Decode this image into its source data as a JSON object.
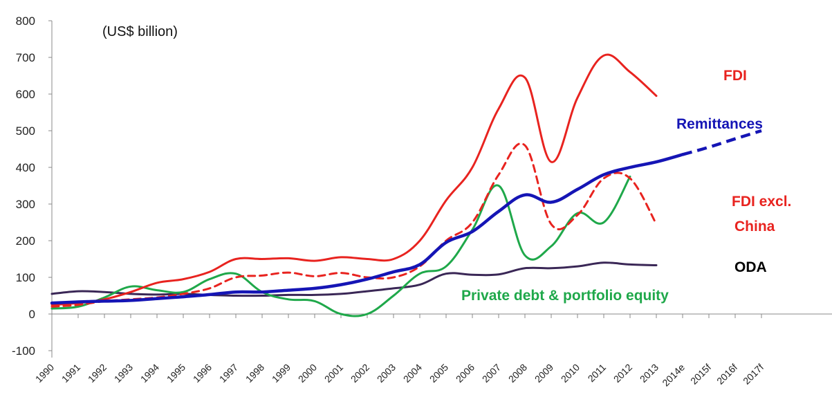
{
  "chart_data": {
    "type": "line",
    "title": "",
    "unit_label": "(US$ billion)",
    "xlabel": "",
    "ylabel": "",
    "ylim": [
      -100,
      800
    ],
    "yticks": [
      "-100",
      "0",
      "100",
      "200",
      "300",
      "400",
      "500",
      "600",
      "700",
      "800"
    ],
    "categories": [
      "1990",
      "1991",
      "1992",
      "1993",
      "1994",
      "1995",
      "1996",
      "1997",
      "1998",
      "1999",
      "2000",
      "2001",
      "2002",
      "2003",
      "2004",
      "2005",
      "2006",
      "2007",
      "2008",
      "2009",
      "2010",
      "2011",
      "2012",
      "2013",
      "2014e",
      "2015f",
      "2016f",
      "2017f"
    ],
    "grid": false,
    "legend": "inline labels",
    "series": [
      {
        "name": "FDI",
        "color": "#e8231f",
        "style": "solid",
        "values": [
          25,
          30,
          40,
          60,
          85,
          95,
          115,
          150,
          150,
          152,
          145,
          155,
          150,
          150,
          200,
          310,
          400,
          560,
          645,
          415,
          590,
          705,
          660,
          595,
          null,
          null,
          null,
          null
        ]
      },
      {
        "name": "FDI excl. China",
        "color": "#e8231f",
        "style": "dashed",
        "values": [
          20,
          25,
          35,
          40,
          45,
          55,
          70,
          100,
          105,
          113,
          103,
          112,
          100,
          100,
          130,
          200,
          250,
          380,
          460,
          245,
          270,
          370,
          370,
          245,
          null,
          null,
          null,
          null
        ]
      },
      {
        "name": "Remittances",
        "color": "#1515b5",
        "style": "solid",
        "values": [
          30,
          33,
          35,
          37,
          42,
          47,
          53,
          60,
          60,
          65,
          70,
          80,
          95,
          115,
          135,
          195,
          225,
          280,
          325,
          305,
          340,
          380,
          400,
          415,
          435,
          null,
          null,
          null
        ],
        "projection": [
          null,
          null,
          null,
          null,
          null,
          null,
          null,
          null,
          null,
          null,
          null,
          null,
          null,
          null,
          null,
          null,
          null,
          null,
          null,
          null,
          null,
          null,
          null,
          null,
          435,
          455,
          478,
          500
        ]
      },
      {
        "name": "Private debt & portfolio equity",
        "color": "#1fa84a",
        "style": "solid",
        "values": [
          15,
          20,
          45,
          75,
          65,
          60,
          95,
          110,
          60,
          40,
          35,
          0,
          0,
          50,
          110,
          130,
          230,
          350,
          160,
          185,
          275,
          250,
          375,
          null,
          null,
          null,
          null,
          null
        ]
      },
      {
        "name": "ODA",
        "color": "#3a2756",
        "style": "solid",
        "values": [
          55,
          62,
          60,
          55,
          53,
          55,
          52,
          50,
          50,
          52,
          52,
          55,
          62,
          70,
          80,
          110,
          107,
          108,
          125,
          125,
          130,
          140,
          135,
          133,
          null,
          null,
          null,
          null
        ]
      }
    ]
  }
}
